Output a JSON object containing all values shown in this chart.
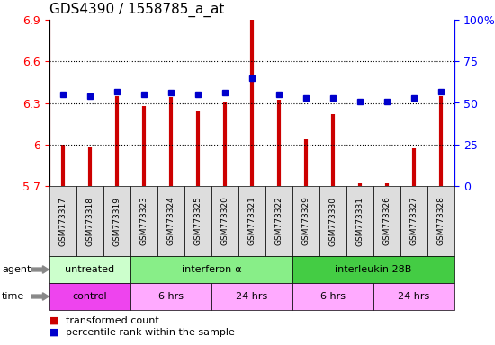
{
  "title": "GDS4390 / 1558785_a_at",
  "samples": [
    "GSM773317",
    "GSM773318",
    "GSM773319",
    "GSM773323",
    "GSM773324",
    "GSM773325",
    "GSM773320",
    "GSM773321",
    "GSM773322",
    "GSM773329",
    "GSM773330",
    "GSM773331",
    "GSM773326",
    "GSM773327",
    "GSM773328"
  ],
  "red_values": [
    6.0,
    5.98,
    6.35,
    6.28,
    6.34,
    6.24,
    6.31,
    6.9,
    6.32,
    6.04,
    6.22,
    5.72,
    5.72,
    5.97,
    6.35
  ],
  "blue_values": [
    55,
    54,
    57,
    55,
    56,
    55,
    56,
    65,
    55,
    53,
    53,
    51,
    51,
    53,
    57
  ],
  "ylim_left": [
    5.7,
    6.9
  ],
  "ylim_right": [
    0,
    100
  ],
  "yticks_left": [
    5.7,
    6.0,
    6.3,
    6.6,
    6.9
  ],
  "yticks_right": [
    0,
    25,
    50,
    75,
    100
  ],
  "ytick_labels_left": [
    "5.7",
    "6",
    "6.3",
    "6.6",
    "6.9"
  ],
  "ytick_labels_right": [
    "0",
    "25",
    "50",
    "75",
    "100%"
  ],
  "hlines": [
    6.0,
    6.3,
    6.6
  ],
  "agent_groups": [
    {
      "label": "untreated",
      "start": 0,
      "end": 3,
      "color": "#ccffcc"
    },
    {
      "label": "interferon-α",
      "start": 3,
      "end": 9,
      "color": "#88ee88"
    },
    {
      "label": "interleukin 28B",
      "start": 9,
      "end": 15,
      "color": "#44cc44"
    }
  ],
  "time_groups": [
    {
      "label": "control",
      "start": 0,
      "end": 3,
      "color": "#ee44ee"
    },
    {
      "label": "6 hrs",
      "start": 3,
      "end": 6,
      "color": "#ffaaff"
    },
    {
      "label": "24 hrs",
      "start": 6,
      "end": 9,
      "color": "#ffaaff"
    },
    {
      "label": "6 hrs",
      "start": 9,
      "end": 12,
      "color": "#ffaaff"
    },
    {
      "label": "24 hrs",
      "start": 12,
      "end": 15,
      "color": "#ffaaff"
    }
  ],
  "red_color": "#cc0000",
  "blue_color": "#0000cc",
  "baseline": 5.7,
  "legend_items": [
    {
      "color": "#cc0000",
      "label": "transformed count"
    },
    {
      "color": "#0000cc",
      "label": "percentile rank within the sample"
    }
  ],
  "plot_bg": "#ffffff",
  "xtick_bg": "#dddddd"
}
